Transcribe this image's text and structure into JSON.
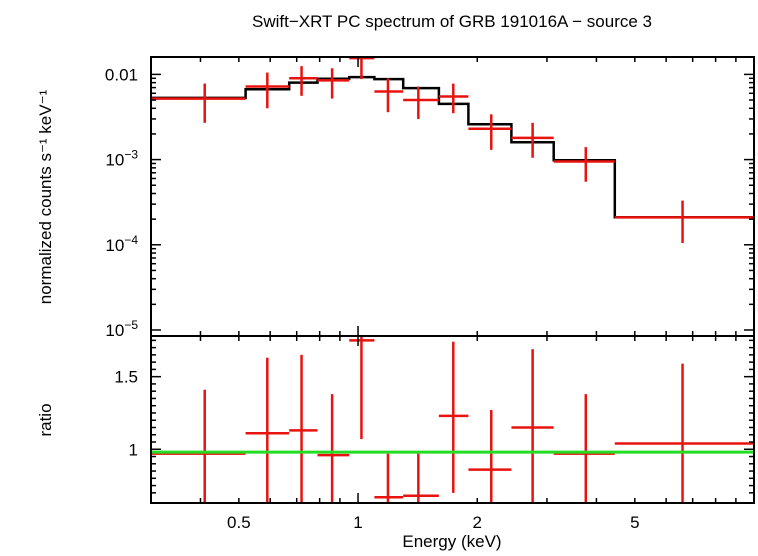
{
  "title": "Swift−XRT PC spectrum of GRB 191016A − source 3",
  "colors": {
    "data": "#e8130e",
    "model": "#000000",
    "ratio_line": "#22dd22",
    "frame": "#000000"
  },
  "chart_data": [
    {
      "panel": "spectrum",
      "type": "scatter",
      "xscale": "log",
      "yscale": "log",
      "xlim": [
        0.3,
        10
      ],
      "ylim": [
        8.5e-06,
        0.016
      ],
      "ylabel": "normalized counts s⁻¹ keV⁻¹",
      "ytick_labels": [
        {
          "value": 0.01,
          "label": "0.01"
        },
        {
          "value": 0.001,
          "base": "10",
          "exp": "−3"
        },
        {
          "value": 0.0001,
          "base": "10",
          "exp": "−4"
        },
        {
          "value": 1e-05,
          "base": "10",
          "exp": "−5"
        }
      ],
      "series": [
        {
          "kind": "data",
          "points": [
            {
              "x": 0.41,
              "xlo": 0.3,
              "xhi": 0.52,
              "y": 0.0052,
              "ylo": 0.0027,
              "yhi": 0.0078
            },
            {
              "x": 0.59,
              "xlo": 0.52,
              "xhi": 0.67,
              "y": 0.0072,
              "ylo": 0.004,
              "yhi": 0.0105
            },
            {
              "x": 0.72,
              "xlo": 0.67,
              "xhi": 0.79,
              "y": 0.009,
              "ylo": 0.0056,
              "yhi": 0.0125
            },
            {
              "x": 0.86,
              "xlo": 0.79,
              "xhi": 0.95,
              "y": 0.0085,
              "ylo": 0.0052,
              "yhi": 0.0118
            },
            {
              "x": 1.02,
              "xlo": 0.95,
              "xhi": 1.1,
              "y": 0.0155,
              "ylo": 0.0088,
              "yhi": 0.016
            },
            {
              "x": 1.19,
              "xlo": 1.1,
              "xhi": 1.3,
              "y": 0.0063,
              "ylo": 0.0036,
              "yhi": 0.009
            },
            {
              "x": 1.42,
              "xlo": 1.3,
              "xhi": 1.6,
              "y": 0.005,
              "ylo": 0.003,
              "yhi": 0.0072
            },
            {
              "x": 1.74,
              "xlo": 1.6,
              "xhi": 1.9,
              "y": 0.0055,
              "ylo": 0.0035,
              "yhi": 0.0078
            },
            {
              "x": 2.17,
              "xlo": 1.9,
              "xhi": 2.44,
              "y": 0.0023,
              "ylo": 0.0013,
              "yhi": 0.0034
            },
            {
              "x": 2.76,
              "xlo": 2.44,
              "xhi": 3.12,
              "y": 0.0018,
              "ylo": 0.00105,
              "yhi": 0.0027
            },
            {
              "x": 3.76,
              "xlo": 3.12,
              "xhi": 4.45,
              "y": 0.00095,
              "ylo": 0.00055,
              "yhi": 0.0014
            },
            {
              "x": 6.6,
              "xlo": 4.45,
              "xhi": 10.0,
              "y": 0.00021,
              "ylo": 0.000105,
              "yhi": 0.00033
            }
          ]
        },
        {
          "kind": "model",
          "steps": [
            {
              "xlo": 0.3,
              "xhi": 0.52,
              "y": 0.0053
            },
            {
              "xlo": 0.52,
              "xhi": 0.67,
              "y": 0.0067
            },
            {
              "xlo": 0.67,
              "xhi": 0.79,
              "y": 0.008
            },
            {
              "xlo": 0.79,
              "xhi": 0.95,
              "y": 0.0089
            },
            {
              "xlo": 0.95,
              "xhi": 1.1,
              "y": 0.0093
            },
            {
              "xlo": 1.1,
              "xhi": 1.3,
              "y": 0.0088
            },
            {
              "xlo": 1.3,
              "xhi": 1.6,
              "y": 0.0069
            },
            {
              "xlo": 1.6,
              "xhi": 1.9,
              "y": 0.0045
            },
            {
              "xlo": 1.9,
              "xhi": 2.44,
              "y": 0.0026
            },
            {
              "xlo": 2.44,
              "xhi": 3.12,
              "y": 0.0016
            },
            {
              "xlo": 3.12,
              "xhi": 4.45,
              "y": 0.00098
            },
            {
              "xlo": 4.45,
              "xhi": 10.0,
              "y": 0.00021
            }
          ]
        }
      ]
    },
    {
      "panel": "ratio",
      "type": "scatter",
      "xscale": "log",
      "yscale": "linear",
      "xlim": [
        0.3,
        10
      ],
      "ylim": [
        0.63,
        1.78
      ],
      "xlabel": "Energy (keV)",
      "ylabel": "ratio",
      "xtick_labels": [
        {
          "value": 0.5,
          "label": "0.5"
        },
        {
          "value": 1,
          "label": "1"
        },
        {
          "value": 2,
          "label": "2"
        },
        {
          "value": 5,
          "label": "5"
        }
      ],
      "ytick_labels": [
        {
          "value": 1,
          "label": "1"
        },
        {
          "value": 1.5,
          "label": "1.5"
        }
      ],
      "reference_line": 0.98,
      "series": [
        {
          "kind": "data",
          "points": [
            {
              "x": 0.41,
              "xlo": 0.3,
              "xhi": 0.52,
              "y": 0.97,
              "ylo": 0.63,
              "yhi": 1.41
            },
            {
              "x": 0.59,
              "xlo": 0.52,
              "xhi": 0.67,
              "y": 1.11,
              "ylo": 0.63,
              "yhi": 1.63
            },
            {
              "x": 0.72,
              "xlo": 0.67,
              "xhi": 0.79,
              "y": 1.13,
              "ylo": 0.63,
              "yhi": 1.65
            },
            {
              "x": 0.86,
              "xlo": 0.79,
              "xhi": 0.95,
              "y": 0.96,
              "ylo": 0.63,
              "yhi": 1.38
            },
            {
              "x": 1.02,
              "xlo": 0.95,
              "xhi": 1.1,
              "y": 1.75,
              "ylo": 1.07,
              "yhi": 1.78
            },
            {
              "x": 1.19,
              "xlo": 1.1,
              "xhi": 1.3,
              "y": 0.67,
              "ylo": 0.63,
              "yhi": 0.97
            },
            {
              "x": 1.42,
              "xlo": 1.3,
              "xhi": 1.6,
              "y": 0.68,
              "ylo": 0.63,
              "yhi": 0.97
            },
            {
              "x": 1.74,
              "xlo": 1.6,
              "xhi": 1.9,
              "y": 1.23,
              "ylo": 0.7,
              "yhi": 1.74
            },
            {
              "x": 2.17,
              "xlo": 1.9,
              "xhi": 2.44,
              "y": 0.86,
              "ylo": 0.63,
              "yhi": 1.27
            },
            {
              "x": 2.76,
              "xlo": 2.44,
              "xhi": 3.12,
              "y": 1.15,
              "ylo": 0.63,
              "yhi": 1.69
            },
            {
              "x": 3.76,
              "xlo": 3.12,
              "xhi": 4.45,
              "y": 0.97,
              "ylo": 0.63,
              "yhi": 1.38
            },
            {
              "x": 6.6,
              "xlo": 4.45,
              "xhi": 10.0,
              "y": 1.04,
              "ylo": 0.63,
              "yhi": 1.59
            }
          ]
        }
      ]
    }
  ]
}
